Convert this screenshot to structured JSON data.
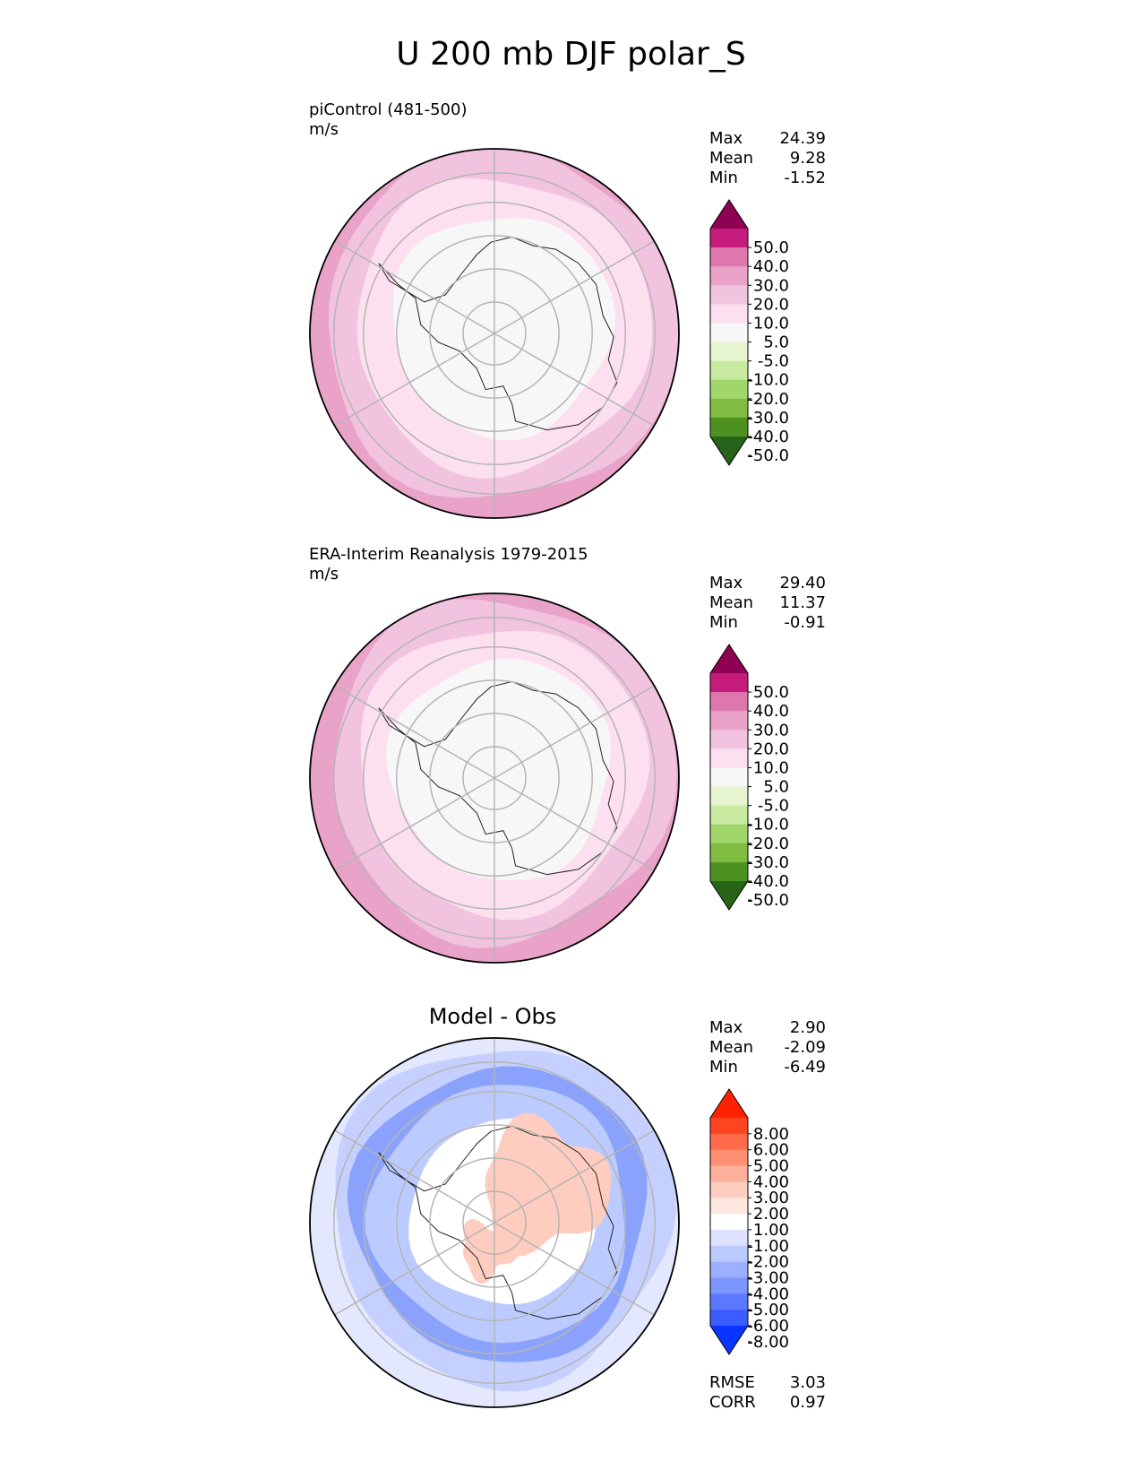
{
  "title": "U 200 mb DJF polar_S",
  "panels": [
    {
      "label_line1": "piControl (481-500)",
      "label_line2": "m/s",
      "stats": [
        {
          "key": "Max",
          "value": "24.39"
        },
        {
          "key": "Mean",
          "value": "9.28"
        },
        {
          "key": "Min",
          "value": "-1.52"
        }
      ]
    },
    {
      "label_line1": "ERA-Interim Reanalysis 1979-2015",
      "label_line2": "m/s",
      "stats": [
        {
          "key": "Max",
          "value": "29.40"
        },
        {
          "key": "Mean",
          "value": "11.37"
        },
        {
          "key": "Min",
          "value": "-0.91"
        }
      ]
    },
    {
      "subtitle": "Model - Obs",
      "stats": [
        {
          "key": "Max",
          "value": "2.90"
        },
        {
          "key": "Mean",
          "value": "-2.09"
        },
        {
          "key": "Min",
          "value": "-6.49"
        }
      ],
      "extra_stats": [
        {
          "key": "RMSE",
          "value": "3.03"
        },
        {
          "key": "CORR",
          "value": "0.97"
        }
      ]
    }
  ],
  "chart_data": [
    {
      "type": "heatmap",
      "projection": "south polar stereographic",
      "panel": "piControl (481-500)",
      "units": "m/s",
      "colorbar": {
        "ticks": [
          "50.0",
          "40.0",
          "30.0",
          "20.0",
          "10.0",
          "5.0",
          "-5.0",
          "-10.0",
          "-20.0",
          "-30.0",
          "-40.0",
          "-50.0"
        ],
        "colors_top_to_bottom": [
          "#8e0152",
          "#c51b7d",
          "#de77ae",
          "#e9a3c9",
          "#f1c3df",
          "#fde0ef",
          "#f7f7f7",
          "#e6f5d0",
          "#c7e9a0",
          "#a1d76a",
          "#7fbc41",
          "#4d9221",
          "#276419"
        ],
        "extend": "both"
      },
      "rings_outer_to_inner": [
        "#e9a3c9",
        "#f1c3df",
        "#fde0ef",
        "#f7f7f7"
      ]
    },
    {
      "type": "heatmap",
      "projection": "south polar stereographic",
      "panel": "ERA-Interim Reanalysis 1979-2015",
      "units": "m/s",
      "colorbar": {
        "ticks": [
          "50.0",
          "40.0",
          "30.0",
          "20.0",
          "10.0",
          "5.0",
          "-5.0",
          "-10.0",
          "-20.0",
          "-30.0",
          "-40.0",
          "-50.0"
        ],
        "colors_top_to_bottom": [
          "#8e0152",
          "#c51b7d",
          "#de77ae",
          "#e9a3c9",
          "#f1c3df",
          "#fde0ef",
          "#f7f7f7",
          "#e6f5d0",
          "#c7e9a0",
          "#a1d76a",
          "#7fbc41",
          "#4d9221",
          "#276419"
        ],
        "extend": "both"
      },
      "rings_outer_to_inner": [
        "#e9a3c9",
        "#f1c3df",
        "#fde0ef",
        "#f7f7f7"
      ]
    },
    {
      "type": "heatmap",
      "projection": "south polar stereographic",
      "panel": "Model - Obs",
      "colorbar": {
        "ticks": [
          "8.00",
          "6.00",
          "5.00",
          "4.00",
          "3.00",
          "2.00",
          "1.00",
          "-1.00",
          "-2.00",
          "-3.00",
          "-4.00",
          "-5.00",
          "-6.00",
          "-8.00"
        ],
        "colors_top_to_bottom": [
          "#ff2200",
          "#ff4422",
          "#ff6a4a",
          "#ff8f70",
          "#ffb09a",
          "#ffcdbf",
          "#fde6de",
          "#ffffff",
          "#dde3ff",
          "#bccbff",
          "#9cb0ff",
          "#7c95ff",
          "#5a79ff",
          "#3b5cff",
          "#0a34ff"
        ],
        "extend": "both"
      },
      "rings_outer_to_inner": [
        "#e4e8ff",
        "#c5d0ff",
        "#8aa2fb",
        "#bccbff",
        "#ffffff"
      ]
    }
  ]
}
